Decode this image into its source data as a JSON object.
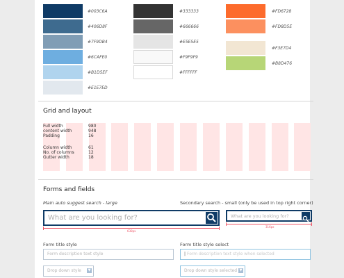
{
  "palette": {
    "col1": [
      {
        "hex": "#003C6A",
        "color": "#0f3b66"
      },
      {
        "hex": "#406D8F",
        "color": "#3e6b8f"
      },
      {
        "hex": "#7F9DB4",
        "color": "#809db5"
      },
      {
        "hex": "#6CAFE0",
        "color": "#6eaee0"
      },
      {
        "hex": "#B1D5EF",
        "color": "#b0d4ee"
      },
      {
        "hex": "#E1E7ED",
        "color": "#e2e8ee"
      }
    ],
    "col2": [
      {
        "hex": "#333333",
        "color": "#333333"
      },
      {
        "hex": "#666666",
        "color": "#666666"
      },
      {
        "hex": "#E5E5E5",
        "color": "#e5e5e5"
      },
      {
        "hex": "#F9F9F9",
        "color": "#f9f9f9"
      },
      {
        "hex": "#FFFFFF",
        "color": "#ffffff"
      }
    ],
    "col3": [
      {
        "hex": "#FD6728",
        "color": "#fd6b2c"
      },
      {
        "hex": "#FD8D5E",
        "color": "#fc905f"
      },
      {
        "hex": "#F3E7D4",
        "color": "#f2e6d3"
      },
      {
        "hex": "#B8D476",
        "color": "#b7d677"
      }
    ]
  },
  "grid": {
    "title": "Grid and layout",
    "specs": [
      {
        "label": "Full width",
        "value": "980"
      },
      {
        "label": "content  width",
        "value": "948"
      },
      {
        "label": "Padding",
        "value": "16"
      },
      {
        "label": "Column width",
        "value": "61"
      },
      {
        "label": "No. of columns",
        "value": "12"
      },
      {
        "label": "Gutter width",
        "value": "18"
      }
    ]
  },
  "forms": {
    "title": "Forms and fields",
    "main_search_label": "Main auto suggest search - large",
    "main_search_placeholder": "What are you looking for?",
    "main_search_measure": "638px",
    "secondary_search_label": "Secondary search - small (only be used in top right corner)",
    "secondary_search_placeholder": "What are you looking for?",
    "secondary_search_measure": "316px",
    "title_style_label": "Form title style",
    "title_style_placeholder": "Form description text style",
    "title_select_label": "Form title style select",
    "title_select_value": "Form description text style when selected",
    "dropdown_label": "Drop down style",
    "dropdown_selected_label": "Drop down style selected"
  }
}
